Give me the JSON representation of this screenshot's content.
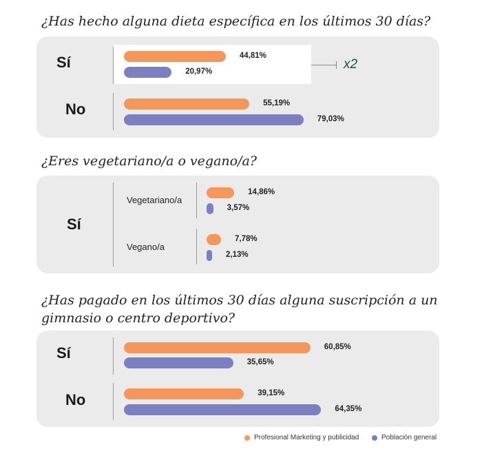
{
  "colors": {
    "profesional": "#f5975a",
    "poblacion": "#7b80c2",
    "annotation": "#1f4f3a"
  },
  "chart_data": [
    {
      "type": "bar",
      "orientation": "horizontal",
      "title": "¿Has hecho alguna dieta específica en los últimos 30 días?",
      "categories": [
        "Sí",
        "No"
      ],
      "series": [
        {
          "name": "Profesional Marketing y publicidad",
          "values": [
            44.81,
            55.19
          ],
          "labels": [
            "44,81%",
            "55,19%"
          ]
        },
        {
          "name": "Población general",
          "values": [
            20.97,
            79.03
          ],
          "labels": [
            "20,97%",
            "79,03%"
          ]
        }
      ],
      "annotation": "x2"
    },
    {
      "type": "bar",
      "orientation": "horizontal",
      "title": "¿Eres vegetariano/a o vegano/a?",
      "group": "Sí",
      "categories": [
        "Vegetariano/a",
        "Vegano/a"
      ],
      "series": [
        {
          "name": "Profesional Marketing y publicidad",
          "values": [
            14.86,
            7.78
          ],
          "labels": [
            "14,86%",
            "7,78%"
          ]
        },
        {
          "name": "Población general",
          "values": [
            3.57,
            2.13
          ],
          "labels": [
            "3,57%",
            "2,13%"
          ]
        }
      ]
    },
    {
      "type": "bar",
      "orientation": "horizontal",
      "title": "¿Has pagado en los últimos 30 días alguna suscripción a un gimnasio o centro deportivo?",
      "categories": [
        "Sí",
        "No"
      ],
      "series": [
        {
          "name": "Profesional Marketing y publicidad",
          "values": [
            60.85,
            39.15
          ],
          "labels": [
            "60,85%",
            "39,15%"
          ]
        },
        {
          "name": "Población general",
          "values": [
            35.65,
            64.35
          ],
          "labels": [
            "35,65%",
            "64,35%"
          ]
        }
      ]
    }
  ],
  "legend": {
    "position": "bottom-right",
    "items": [
      "Profesional Marketing y publicidad",
      "Población general"
    ]
  }
}
